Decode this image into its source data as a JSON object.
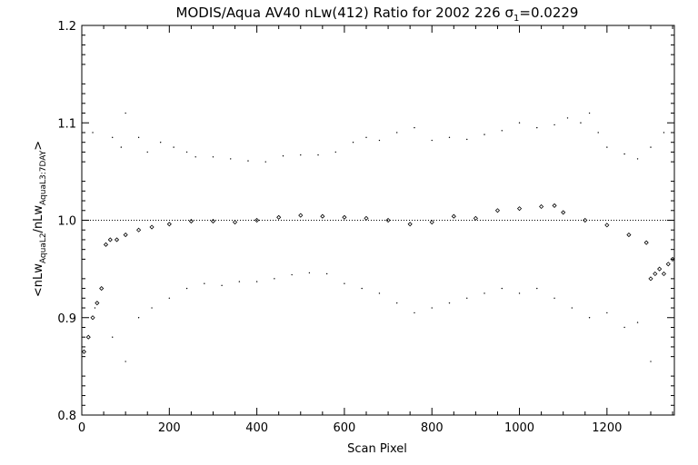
{
  "chart_data": {
    "type": "scatter",
    "title": {
      "prefix": "MODIS/Aqua AV40 nLw(412) Ratio for 2002 226 ",
      "sigma_symbol": "σ",
      "sigma_subscript": "1",
      "suffix": "=0.0229"
    },
    "xlabel": "Scan Pixel",
    "ylabel": {
      "open": "<nLw",
      "sub1": "AquaL2",
      "mid": "/nLw",
      "sub2": "AquaL3:7DAY",
      "close": ">"
    },
    "xlim": [
      0,
      1354
    ],
    "ylim": [
      0.8,
      1.2
    ],
    "xticks": [
      0,
      200,
      400,
      600,
      800,
      1000,
      1200
    ],
    "xtick_labels": [
      "0",
      "200",
      "400",
      "600",
      "800",
      "1000",
      "1200"
    ],
    "yticks": [
      0.8,
      0.9,
      1.0,
      1.1,
      1.2
    ],
    "ytick_labels": [
      "0.8",
      "0.9",
      "1.0",
      "1.1",
      "1.2"
    ],
    "reference_line_y": 1.0,
    "grid": false,
    "series": [
      {
        "role": "mean ratio",
        "marker": "diamond",
        "x": [
          5,
          15,
          25,
          35,
          45,
          55,
          65,
          80,
          100,
          130,
          160,
          200,
          250,
          300,
          350,
          400,
          450,
          500,
          550,
          600,
          650,
          700,
          750,
          800,
          850,
          900,
          950,
          1000,
          1050,
          1080,
          1100,
          1150,
          1200,
          1250,
          1290,
          1300,
          1310,
          1320,
          1330,
          1340,
          1350
        ],
        "y": [
          0.865,
          0.88,
          0.9,
          0.915,
          0.93,
          0.975,
          0.98,
          0.98,
          0.985,
          0.99,
          0.993,
          0.996,
          0.999,
          0.999,
          0.998,
          1.0,
          1.003,
          1.005,
          1.004,
          1.003,
          1.002,
          1.0,
          0.996,
          0.998,
          1.004,
          1.002,
          1.01,
          1.012,
          1.014,
          1.015,
          1.008,
          1.0,
          0.995,
          0.985,
          0.977,
          0.94,
          0.945,
          0.95,
          0.945,
          0.955,
          0.96
        ]
      },
      {
        "role": "upper band",
        "marker": "dot",
        "x": [
          25,
          70,
          90,
          100,
          130,
          150,
          180,
          210,
          240,
          260,
          300,
          340,
          380,
          420,
          460,
          500,
          540,
          580,
          620,
          650,
          680,
          720,
          760,
          800,
          840,
          880,
          920,
          960,
          1000,
          1040,
          1080,
          1110,
          1140,
          1160,
          1180,
          1200,
          1240,
          1270,
          1300,
          1330
        ],
        "y": [
          1.09,
          1.085,
          1.075,
          1.11,
          1.085,
          1.07,
          1.08,
          1.075,
          1.07,
          1.065,
          1.065,
          1.063,
          1.061,
          1.06,
          1.066,
          1.067,
          1.067,
          1.07,
          1.08,
          1.085,
          1.082,
          1.09,
          1.095,
          1.082,
          1.085,
          1.083,
          1.088,
          1.092,
          1.1,
          1.095,
          1.098,
          1.105,
          1.1,
          1.11,
          1.09,
          1.075,
          1.068,
          1.063,
          1.075,
          1.09
        ]
      },
      {
        "role": "lower band",
        "marker": "dot",
        "x": [
          30,
          70,
          100,
          130,
          160,
          200,
          240,
          280,
          320,
          360,
          400,
          440,
          480,
          520,
          560,
          600,
          640,
          680,
          720,
          760,
          800,
          840,
          880,
          920,
          960,
          1000,
          1040,
          1080,
          1120,
          1160,
          1200,
          1240,
          1270,
          1300
        ],
        "y": [
          0.91,
          0.88,
          0.855,
          0.9,
          0.91,
          0.92,
          0.93,
          0.935,
          0.933,
          0.937,
          0.937,
          0.94,
          0.944,
          0.946,
          0.945,
          0.935,
          0.93,
          0.925,
          0.915,
          0.905,
          0.91,
          0.915,
          0.92,
          0.925,
          0.93,
          0.925,
          0.93,
          0.92,
          0.91,
          0.9,
          0.905,
          0.89,
          0.895,
          0.855
        ]
      }
    ]
  }
}
